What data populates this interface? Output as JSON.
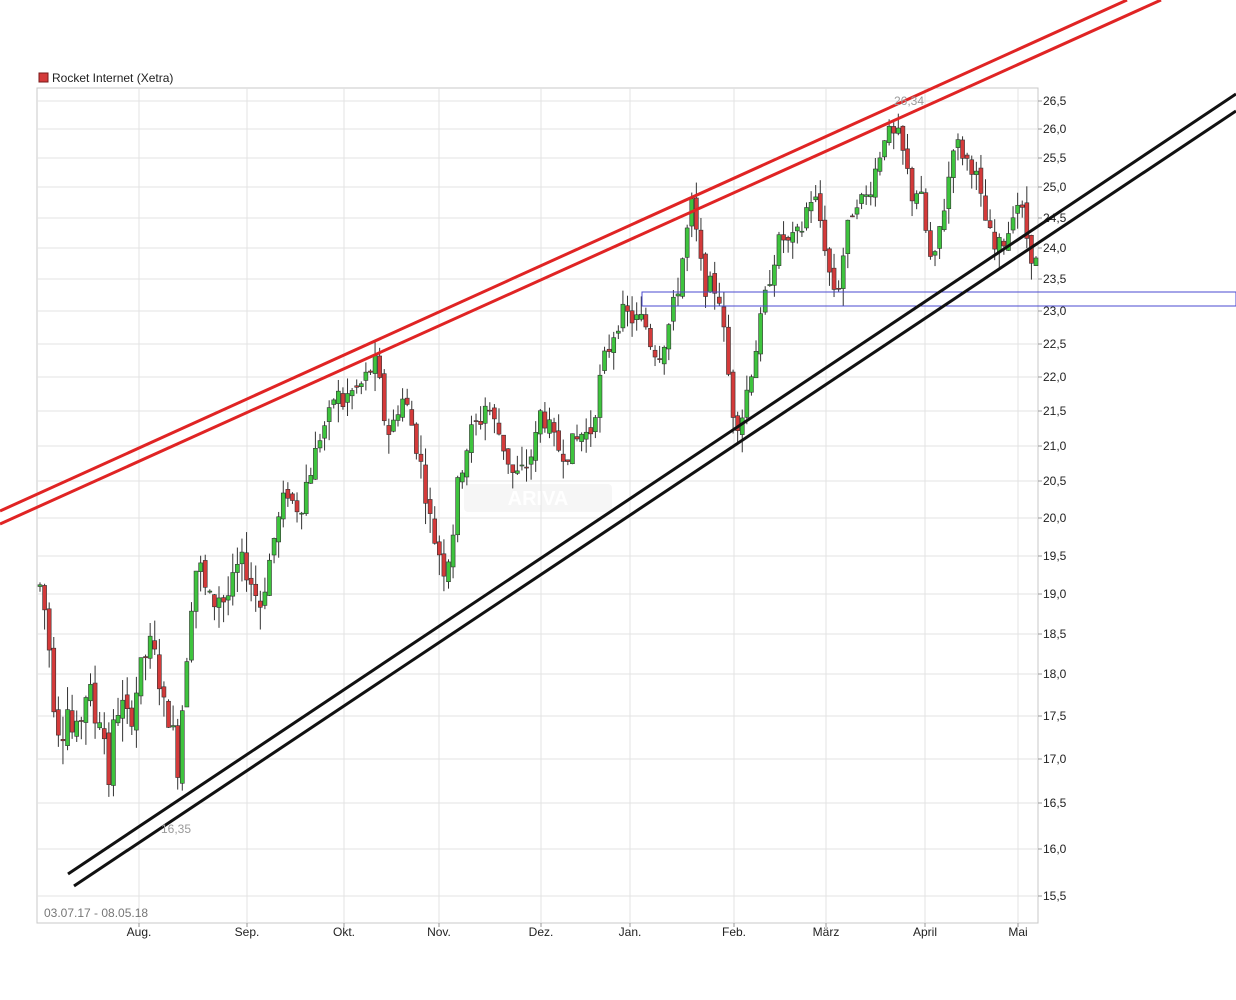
{
  "chart_data": {
    "type": "candlestick",
    "title": "Rocket Internet (Xetra)",
    "date_range": "03.07.17 - 08.05.18",
    "watermark": "ARIVA",
    "y_ticks": [
      15.5,
      16.0,
      16.5,
      17.0,
      17.5,
      18.0,
      18.5,
      19.0,
      19.5,
      20.0,
      20.5,
      21.0,
      21.5,
      22.0,
      22.5,
      23.0,
      23.5,
      24.0,
      24.5,
      25.0,
      25.5,
      26.0,
      26.5
    ],
    "y_tick_labels": [
      "15,5",
      "16,0",
      "16,5",
      "17,0",
      "17,5",
      "18,0",
      "18,5",
      "19,0",
      "19,5",
      "20,0",
      "20,5",
      "21,0",
      "21,5",
      "22,0",
      "22,5",
      "23,0",
      "23,5",
      "24,0",
      "24,5",
      "25,0",
      "25,5",
      "26,0",
      "26,5"
    ],
    "x_labels": [
      "Aug.",
      "Sep.",
      "Okt.",
      "Nov.",
      "Dez.",
      "Jan.",
      "Feb.",
      "März",
      "April",
      "Mai"
    ],
    "annotations": [
      {
        "text": "16,35",
        "value": 16.35
      },
      {
        "text": "26,34",
        "value": 26.34
      }
    ],
    "colors": {
      "up": "#3ec43e",
      "down": "#d43a3a",
      "trend_red": "#e02424",
      "trend_black": "#111111",
      "support": "#4a4ad0"
    },
    "anchors": [
      19.1,
      18.65,
      17.7,
      17.25,
      17.6,
      17.15,
      17.5,
      17.9,
      17.45,
      17.55,
      16.75,
      17.6,
      17.6,
      17.4,
      17.8,
      18.15,
      18.35,
      18.15,
      17.6,
      17.5,
      16.9,
      17.9,
      18.9,
      19.5,
      19.05,
      18.85,
      19.0,
      18.9,
      19.1,
      19.4,
      19.35,
      19.1,
      18.85,
      19.25,
      19.7,
      20.05,
      20.4,
      20.15,
      20.2,
      20.55,
      20.85,
      21.25,
      21.35,
      21.8,
      21.6,
      21.75,
      21.8,
      21.9,
      22.1,
      22.2,
      21.45,
      21.15,
      21.55,
      21.7,
      21.35,
      20.95,
      20.45,
      19.85,
      19.6,
      19.3,
      19.75,
      20.55,
      20.95,
      21.25,
      21.35,
      21.65,
      21.35,
      21.15,
      20.85,
      20.55,
      20.6,
      20.75,
      21.0,
      21.55,
      21.25,
      21.0,
      20.95,
      20.95,
      21.05,
      21.2,
      21.15,
      21.65,
      22.2,
      22.5,
      22.85,
      22.95,
      22.9,
      22.85,
      22.85,
      22.5,
      22.35,
      22.6,
      22.95,
      23.45,
      24.15,
      24.75,
      23.8,
      23.35,
      23.4,
      23.2,
      22.2,
      21.45,
      21.35,
      21.85,
      22.35,
      22.85,
      23.45,
      23.9,
      24.2,
      24.05,
      24.15,
      24.35,
      24.85,
      24.75,
      24.25,
      23.55,
      23.25,
      23.95,
      24.55,
      24.85,
      24.75,
      25.05,
      25.45,
      25.95,
      25.85,
      25.85,
      25.4,
      24.85,
      25.0,
      24.25,
      23.55,
      24.35,
      24.9,
      25.8,
      25.65,
      25.45,
      25.35,
      24.75,
      24.3,
      23.95,
      24.05,
      24.3,
      24.85,
      24.55,
      24.0,
      23.75
    ]
  }
}
